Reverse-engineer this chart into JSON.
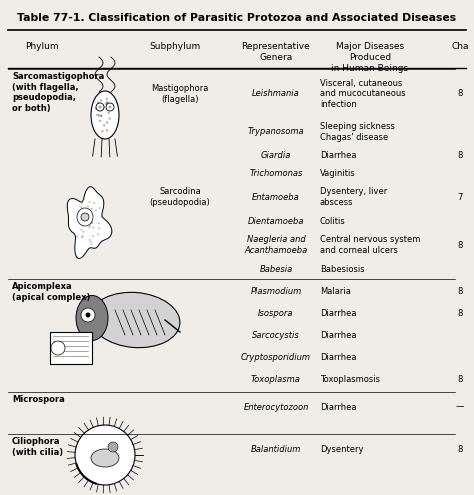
{
  "title": "Table 77-1. Classification of Parasitic Protozoa and Associated Diseases",
  "background_color": "#f0ede8",
  "headers": [
    "Phylum",
    "Subphylum",
    "Representative\nGenera",
    "Major Diseases\nProduced\nin Human Beings",
    "Cha"
  ],
  "rows": [
    {
      "phylum": "Sarcomastigophora\n(with flagella,\npseudopodia,\nor both)",
      "subphylum": "Mastigophora\n(flagella)",
      "genera": "Leishmania",
      "diseases": "Visceral, cutaneous\nand mucocutaneous\ninfection",
      "cha": "8"
    },
    {
      "phylum": "",
      "subphylum": "",
      "genera": "Trypanosoma",
      "diseases": "Sleeping sickness\nChagas' disease",
      "cha": ""
    },
    {
      "phylum": "",
      "subphylum": "",
      "genera": "Giardia",
      "diseases": "Diarrhea",
      "cha": "8"
    },
    {
      "phylum": "",
      "subphylum": "",
      "genera": "Trichomonas",
      "diseases": "Vaginitis",
      "cha": ""
    },
    {
      "phylum": "",
      "subphylum": "Sarcodina\n(pseudopodia)",
      "genera": "Entamoeba",
      "diseases": "Dysentery, liver\nabscess",
      "cha": "7"
    },
    {
      "phylum": "",
      "subphylum": "",
      "genera": "Dientamoeba",
      "diseases": "Colitis",
      "cha": ""
    },
    {
      "phylum": "",
      "subphylum": "",
      "genera": "Naegleria and\nAcanthamoeba",
      "diseases": "Central nervous system\nand corneal ulcers",
      "cha": "8"
    },
    {
      "phylum": "",
      "subphylum": "",
      "genera": "Babesia",
      "diseases": "Babesiosis",
      "cha": ""
    },
    {
      "phylum": "Apicomplexa\n(apical complex)",
      "subphylum": "",
      "genera": "Plasmodium",
      "diseases": "Malaria",
      "cha": "8"
    },
    {
      "phylum": "",
      "subphylum": "",
      "genera": "Isospora",
      "diseases": "Diarrhea",
      "cha": "8"
    },
    {
      "phylum": "",
      "subphylum": "",
      "genera": "Sarcocystis",
      "diseases": "Diarrhea",
      "cha": ""
    },
    {
      "phylum": "",
      "subphylum": "",
      "genera": "Cryptosporidium",
      "diseases": "Diarrhea",
      "cha": ""
    },
    {
      "phylum": "",
      "subphylum": "",
      "genera": "Toxoplasma",
      "diseases": "Toxoplasmosis",
      "cha": "8"
    },
    {
      "phylum": "Microspora",
      "subphylum": "",
      "genera": "Enterocytozoon",
      "diseases": "Diarrhea",
      "cha": "—"
    },
    {
      "phylum": "Ciliophora\n(with cilia)",
      "subphylum": "",
      "genera": "Balantidium",
      "diseases": "Dysentery",
      "cha": "8"
    }
  ]
}
